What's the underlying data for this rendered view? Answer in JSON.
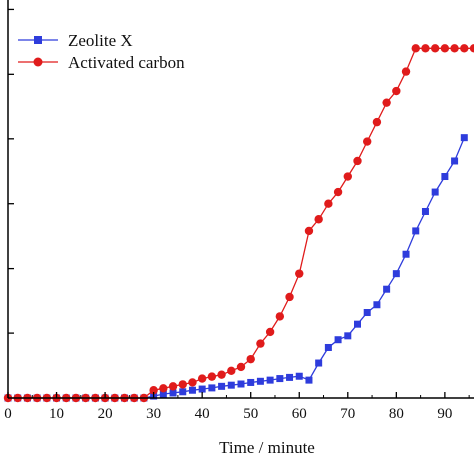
{
  "chart_data": {
    "type": "line",
    "title": "",
    "xlabel": "Time / minute",
    "ylabel": "",
    "xlim": [
      0,
      96
    ],
    "ylim": [
      0,
      1.05
    ],
    "x_ticks": [
      0,
      10,
      20,
      30,
      40,
      50,
      60,
      70,
      80,
      90
    ],
    "x_tick_labels": [
      "0",
      "10",
      "20",
      "30",
      "40",
      "50",
      "60",
      "70",
      "80",
      "90"
    ],
    "y_ticks": [
      0.167,
      0.333,
      0.5,
      0.667,
      0.833,
      1.0
    ],
    "grid": false,
    "legend_position": "top-left",
    "series": [
      {
        "name": "Zeolite X",
        "color": "#2e3cdc",
        "marker": "square",
        "x": [
          0,
          2,
          4,
          6,
          8,
          10,
          12,
          14,
          16,
          18,
          20,
          22,
          24,
          26,
          28,
          30,
          32,
          34,
          36,
          38,
          40,
          42,
          44,
          46,
          48,
          50,
          52,
          54,
          56,
          58,
          60,
          62,
          64,
          66,
          68,
          70,
          72,
          74,
          76,
          78,
          80,
          82,
          84,
          86,
          88,
          90,
          92,
          94
        ],
        "y": [
          0,
          0,
          0,
          0,
          0,
          0,
          0,
          0,
          0,
          0,
          0,
          0,
          0,
          0,
          0,
          0.005,
          0.01,
          0.013,
          0.016,
          0.02,
          0.023,
          0.026,
          0.03,
          0.033,
          0.036,
          0.04,
          0.043,
          0.046,
          0.05,
          0.053,
          0.056,
          0.046,
          0.09,
          0.13,
          0.15,
          0.16,
          0.19,
          0.22,
          0.24,
          0.28,
          0.32,
          0.37,
          0.43,
          0.48,
          0.53,
          0.57,
          0.61,
          0.67
        ]
      },
      {
        "name": "Activated carbon",
        "color": "#e01b1b",
        "marker": "circle",
        "x": [
          0,
          2,
          4,
          6,
          8,
          10,
          12,
          14,
          16,
          18,
          20,
          22,
          24,
          26,
          28,
          30,
          32,
          34,
          36,
          38,
          40,
          42,
          44,
          46,
          48,
          50,
          52,
          54,
          56,
          58,
          60,
          62,
          64,
          66,
          68,
          70,
          72,
          74,
          76,
          78,
          80,
          82,
          84,
          86,
          88,
          90,
          92,
          94,
          96
        ],
        "y": [
          0,
          0,
          0,
          0,
          0,
          0,
          0,
          0,
          0,
          0,
          0,
          0,
          0,
          0,
          0,
          0.02,
          0.025,
          0.03,
          0.035,
          0.04,
          0.05,
          0.055,
          0.06,
          0.07,
          0.08,
          0.1,
          0.14,
          0.17,
          0.21,
          0.26,
          0.32,
          0.43,
          0.46,
          0.5,
          0.53,
          0.57,
          0.61,
          0.66,
          0.71,
          0.76,
          0.79,
          0.84,
          0.9,
          0.9,
          0.9,
          0.9,
          0.9,
          0.9,
          0.9
        ]
      }
    ]
  }
}
